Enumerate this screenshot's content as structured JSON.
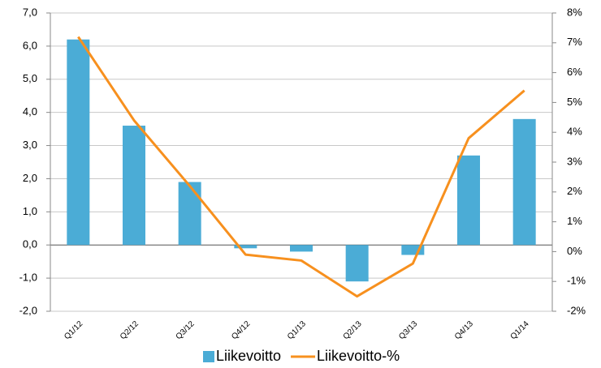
{
  "chart_data": {
    "type": "bar_line",
    "categories": [
      "Q1/12",
      "Q2/12",
      "Q3/12",
      "Q4/12",
      "Q1/13",
      "Q2/13",
      "Q3/13",
      "Q4/13",
      "Q1/14"
    ],
    "series": [
      {
        "name": "Liikevoitto",
        "type": "bar",
        "color": "#4bacd6",
        "values": [
          6.2,
          3.6,
          1.9,
          -0.1,
          -0.2,
          -1.1,
          -0.3,
          2.7,
          3.8
        ]
      },
      {
        "name": "Liikevoitto-%",
        "type": "line",
        "axis": "y2",
        "color": "#f7901e",
        "values": [
          7.2,
          4.4,
          2.2,
          -0.1,
          -0.3,
          -1.5,
          -0.4,
          3.8,
          5.4
        ]
      }
    ],
    "ylim": [
      -2,
      7
    ],
    "yticks": [
      {
        "value": -2,
        "label": "-2,0"
      },
      {
        "value": -1,
        "label": "-1,0"
      },
      {
        "value": 0,
        "label": "0,0"
      },
      {
        "value": 1,
        "label": "1,0"
      },
      {
        "value": 2,
        "label": "2,0"
      },
      {
        "value": 3,
        "label": "3,0"
      },
      {
        "value": 4,
        "label": "4,0"
      },
      {
        "value": 5,
        "label": "5,0"
      },
      {
        "value": 6,
        "label": "6,0"
      },
      {
        "value": 7,
        "label": "7,0"
      }
    ],
    "y2lim": [
      -2,
      8
    ],
    "y2ticks": [
      {
        "value": -2,
        "label": "-2%"
      },
      {
        "value": -1,
        "label": "-1%"
      },
      {
        "value": 0,
        "label": "0%"
      },
      {
        "value": 1,
        "label": "1%"
      },
      {
        "value": 2,
        "label": "2%"
      },
      {
        "value": 3,
        "label": "3%"
      },
      {
        "value": 4,
        "label": "4%"
      },
      {
        "value": 5,
        "label": "5%"
      },
      {
        "value": 6,
        "label": "6%"
      },
      {
        "value": 7,
        "label": "7%"
      },
      {
        "value": 8,
        "label": "8%"
      }
    ],
    "grid": true,
    "legend": "bottom"
  }
}
